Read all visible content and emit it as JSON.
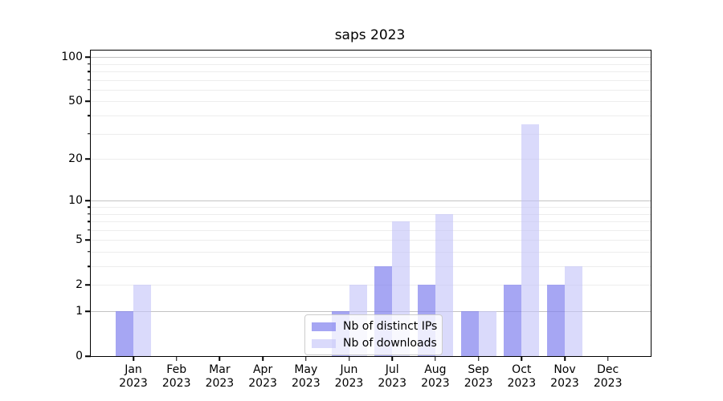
{
  "chart_data": {
    "type": "bar",
    "title": "saps 2023",
    "categories": [
      "Jan",
      "Feb",
      "Mar",
      "Apr",
      "May",
      "Jun",
      "Jul",
      "Aug",
      "Sep",
      "Oct",
      "Nov",
      "Dec"
    ],
    "year_label": "2023",
    "series": [
      {
        "name": "Nb of distinct IPs",
        "key": "distinct-ips",
        "color": "rgba(132,132,238,0.72)",
        "values": [
          1,
          0,
          0,
          0,
          0,
          1,
          3,
          2,
          1,
          2,
          2,
          0
        ]
      },
      {
        "name": "Nb of downloads",
        "key": "downloads",
        "color": "rgba(196,196,248,0.62)",
        "values": [
          2,
          0,
          0,
          0,
          0,
          2,
          7,
          8,
          1,
          35,
          3,
          0
        ]
      }
    ],
    "yscale": "log1p",
    "ylim": [
      0,
      110
    ],
    "yticks": [
      {
        "value": 0,
        "label": "0"
      },
      {
        "value": 1,
        "label": "1"
      },
      {
        "value": 2,
        "label": "2"
      },
      {
        "value": 5,
        "label": "5"
      },
      {
        "value": 10,
        "label": "10"
      },
      {
        "value": 20,
        "label": "20"
      },
      {
        "value": 50,
        "label": "50"
      },
      {
        "value": 100,
        "label": "100"
      }
    ],
    "major_gridlines": [
      1,
      10,
      100
    ],
    "minor_gridlines": [
      2,
      3,
      4,
      5,
      6,
      7,
      8,
      9,
      20,
      30,
      40,
      50,
      60,
      70,
      80,
      90
    ],
    "grid": "horizontal-only",
    "legend_position": "lower-center"
  },
  "colors": {
    "major_grid": "#c3c3c3",
    "minor_grid": "#ededed",
    "spine": "#000000",
    "text": "#000000",
    "background": "#ffffff"
  }
}
